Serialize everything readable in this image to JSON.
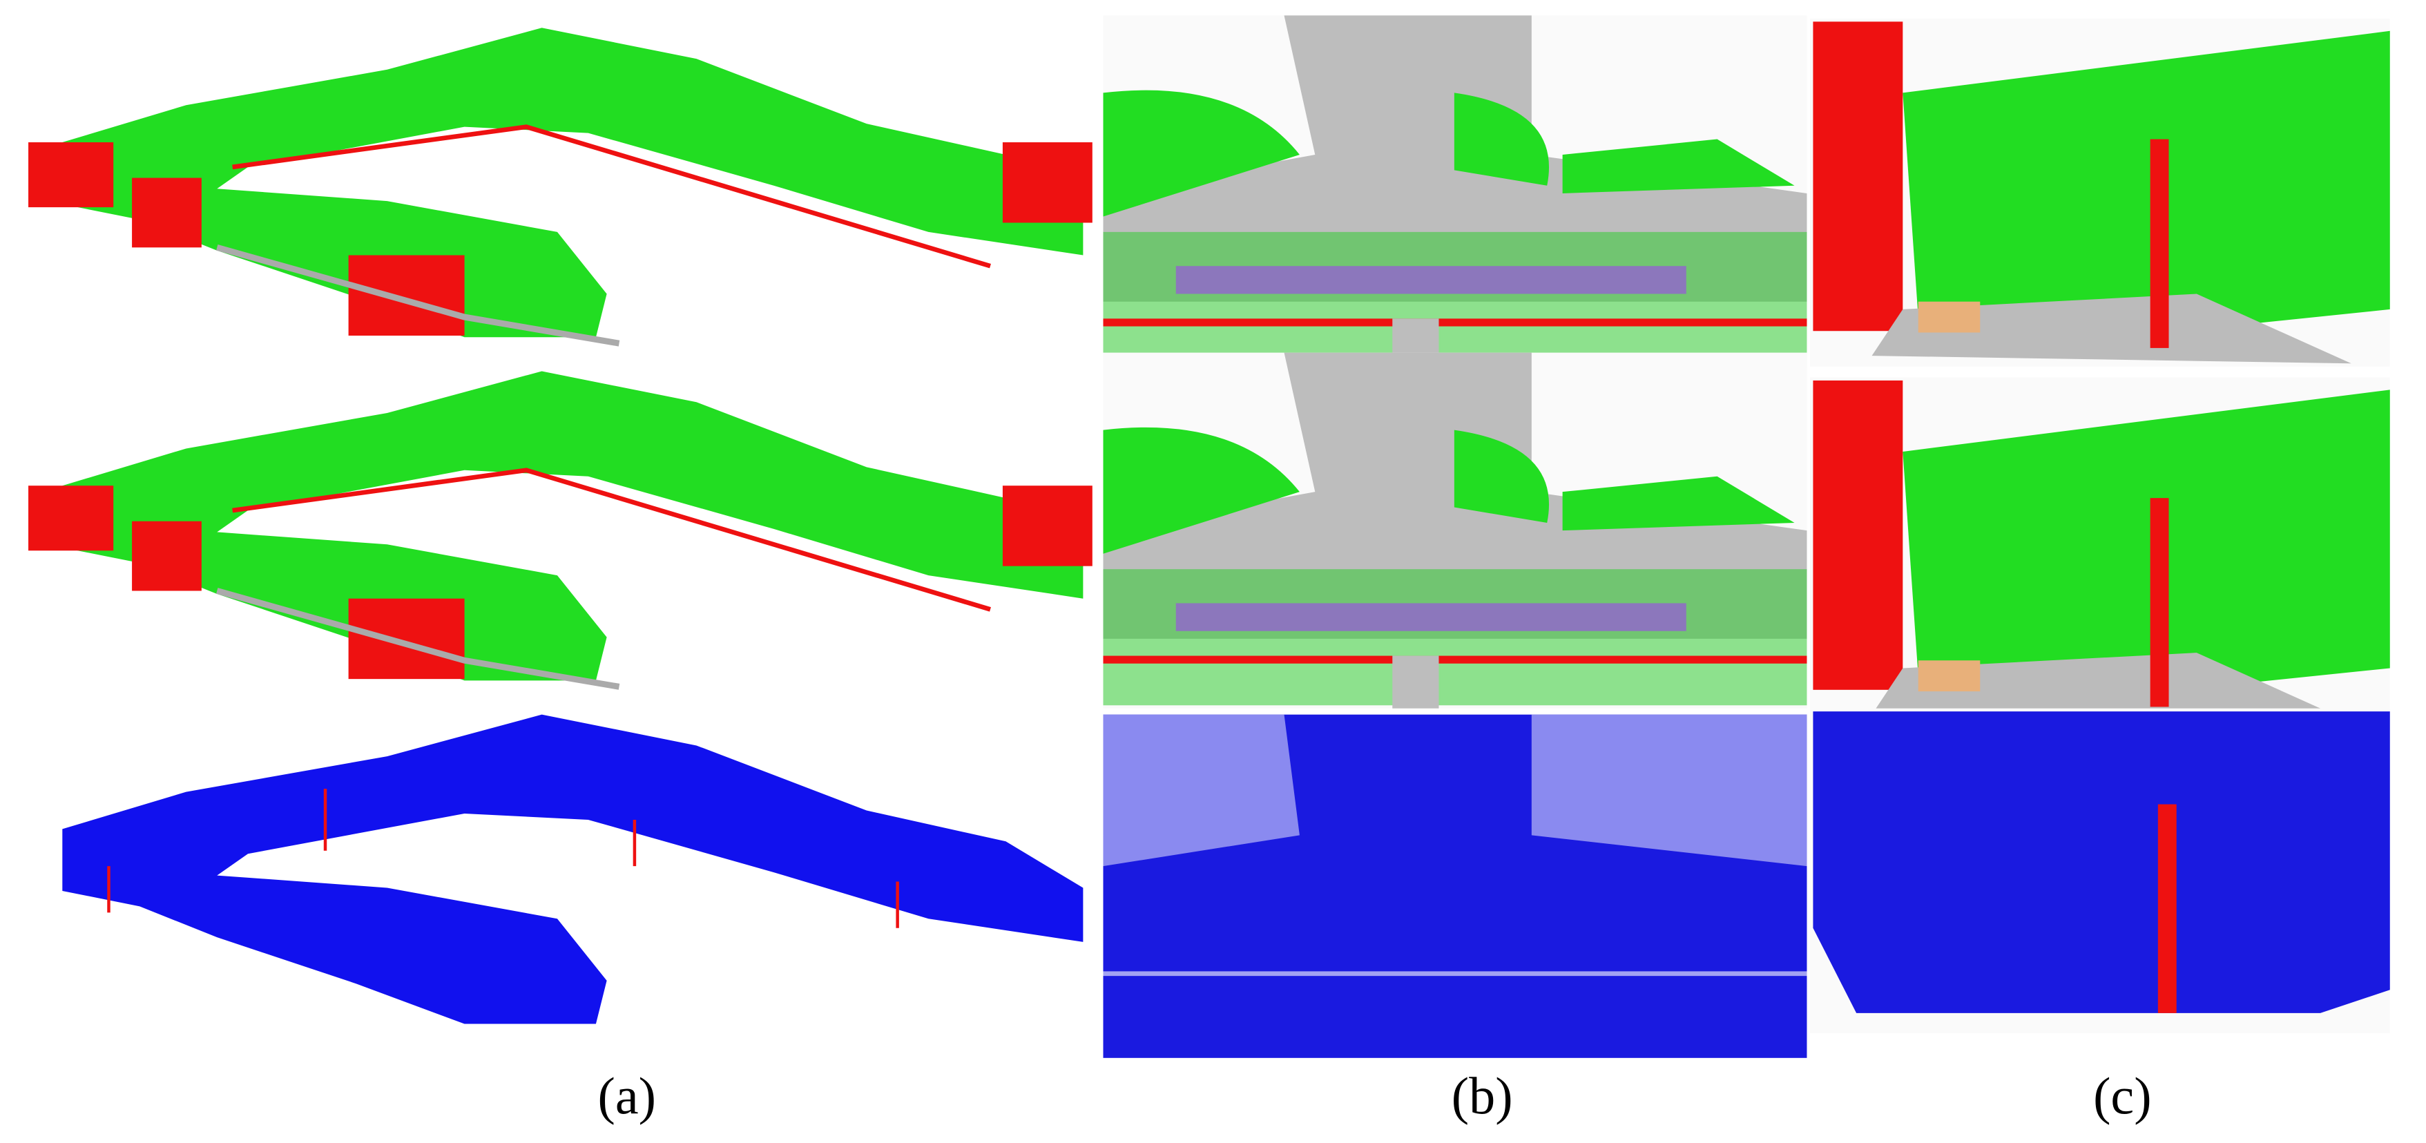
{
  "captions": [
    "(a)",
    "(b)",
    "(c)"
  ]
}
